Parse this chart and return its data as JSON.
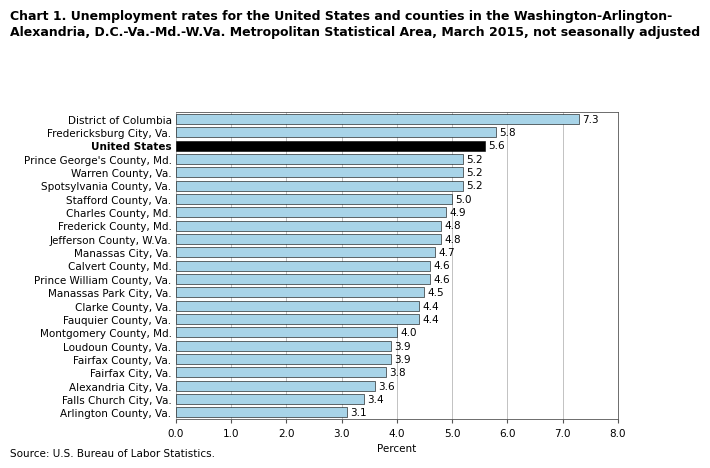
{
  "title_line1": "Chart 1. Unemployment rates for the United States and counties in the Washington-Arlington-",
  "title_line2": "Alexandria, D.C.-Va.-Md.-W.Va. Metropolitan Statistical Area, March 2015, not seasonally adjusted",
  "categories": [
    "District of Columbia",
    "Fredericksburg City, Va.",
    "United States",
    "Prince George's County, Md.",
    "Warren County, Va.",
    "Spotsylvania County, Va.",
    "Stafford County, Va.",
    "Charles County, Md.",
    "Frederick County, Md.",
    "Jefferson County, W.Va.",
    "Manassas City, Va.",
    "Calvert County, Md.",
    "Prince William County, Va.",
    "Manassas Park City, Va.",
    "Clarke County, Va.",
    "Fauquier County, Va.",
    "Montgomery County, Md.",
    "Loudoun County, Va.",
    "Fairfax County, Va.",
    "Fairfax City, Va.",
    "Alexandria City, Va.",
    "Falls Church City, Va.",
    "Arlington County, Va."
  ],
  "values": [
    7.3,
    5.8,
    5.6,
    5.2,
    5.2,
    5.2,
    5.0,
    4.9,
    4.8,
    4.8,
    4.7,
    4.6,
    4.6,
    4.5,
    4.4,
    4.4,
    4.0,
    3.9,
    3.9,
    3.8,
    3.6,
    3.4,
    3.1
  ],
  "bar_colors": [
    "#a8d4e8",
    "#a8d4e8",
    "#000000",
    "#a8d4e8",
    "#a8d4e8",
    "#a8d4e8",
    "#a8d4e8",
    "#a8d4e8",
    "#a8d4e8",
    "#a8d4e8",
    "#a8d4e8",
    "#a8d4e8",
    "#a8d4e8",
    "#a8d4e8",
    "#a8d4e8",
    "#a8d4e8",
    "#a8d4e8",
    "#a8d4e8",
    "#a8d4e8",
    "#a8d4e8",
    "#a8d4e8",
    "#a8d4e8",
    "#a8d4e8"
  ],
  "xlabel": "Percent",
  "xlim": [
    0,
    8.0
  ],
  "xticks": [
    0.0,
    1.0,
    2.0,
    3.0,
    4.0,
    5.0,
    6.0,
    7.0,
    8.0
  ],
  "source": "Source: U.S. Bureau of Labor Statistics.",
  "label_fontsize": 7.5,
  "title_fontsize": 9.0,
  "value_label_color": "#000000",
  "bar_edge_color": "#000000",
  "bg_color": "#ffffff"
}
